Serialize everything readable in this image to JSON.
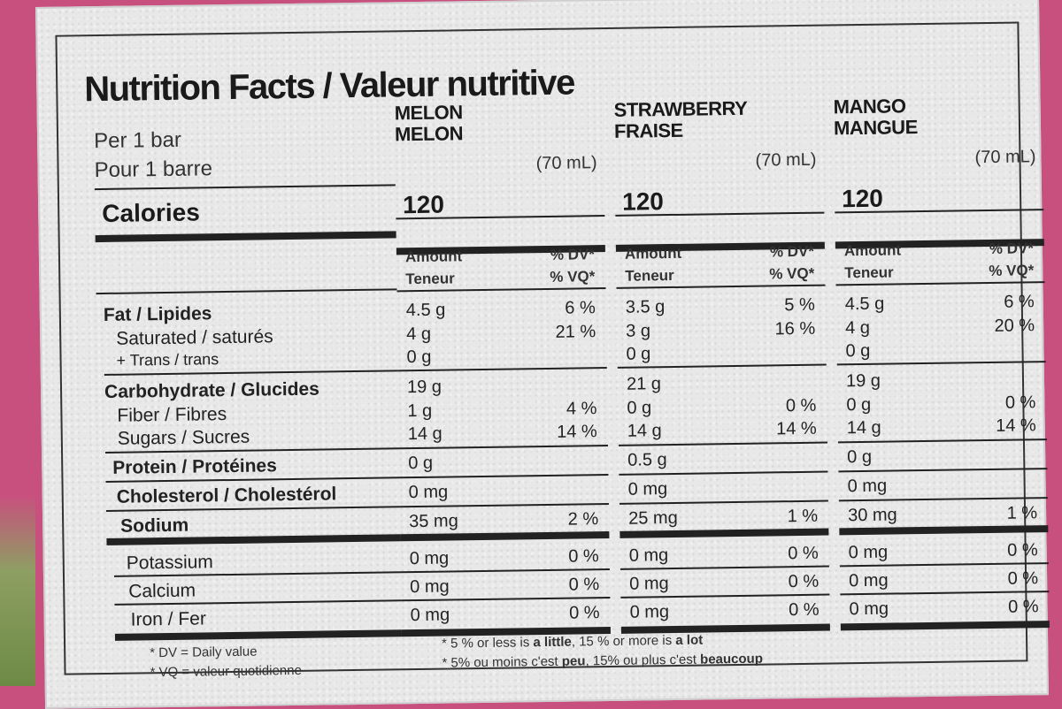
{
  "label": {
    "title": "Nutrition Facts / Valeur nutritive",
    "per_en": "Per 1 bar",
    "per_fr": "Pour 1 barre",
    "calories_label": "Calories",
    "amount_en": "Amount",
    "amount_fr": "Teneur",
    "dv_en": "% DV*",
    "dv_fr": "% VQ*",
    "nutrients": {
      "fat": "Fat / Lipides",
      "saturated": "Saturated / saturés",
      "trans": "+ Trans / trans",
      "carb": "Carbohydrate / Glucides",
      "fiber": "Fiber / Fibres",
      "sugars": "Sugars / Sucres",
      "protein": "Protein / Protéines",
      "cholesterol": "Cholesterol / Cholestérol",
      "sodium": "Sodium",
      "potassium": "Potassium",
      "calcium": "Calcium",
      "iron": "Iron / Fer"
    },
    "columns": [
      {
        "flavor_en": "MELON",
        "flavor_fr": "MELON",
        "volume": "(70 mL)",
        "calories": "120",
        "fat": "4.5 g",
        "fat_dv": "6 %",
        "saturated": "4 g",
        "trans": "0 g",
        "sat_dv": "21 %",
        "carb": "19 g",
        "fiber": "1 g",
        "fiber_dv": "4 %",
        "sugars": "14 g",
        "sugars_dv": "14 %",
        "protein": "0 g",
        "cholesterol": "0 mg",
        "sodium": "35 mg",
        "sodium_dv": "2 %",
        "potassium": "0 mg",
        "potassium_dv": "0 %",
        "calcium": "0 mg",
        "calcium_dv": "0 %",
        "iron": "0 mg",
        "iron_dv": "0 %"
      },
      {
        "flavor_en": "STRAWBERRY",
        "flavor_fr": "FRAISE",
        "volume": "(70 mL)",
        "calories": "120",
        "fat": "3.5 g",
        "fat_dv": "5 %",
        "saturated": "3 g",
        "trans": "0 g",
        "sat_dv": "16 %",
        "carb": "21 g",
        "fiber": "0 g",
        "fiber_dv": "0 %",
        "sugars": "14 g",
        "sugars_dv": "14 %",
        "protein": "0.5 g",
        "cholesterol": "0 mg",
        "sodium": "25 mg",
        "sodium_dv": "1 %",
        "potassium": "0 mg",
        "potassium_dv": "0 %",
        "calcium": "0 mg",
        "calcium_dv": "0 %",
        "iron": "0 mg",
        "iron_dv": "0 %"
      },
      {
        "flavor_en": "MANGO",
        "flavor_fr": "MANGUE",
        "volume": "(70 mL)",
        "calories": "120",
        "fat": "4.5 g",
        "fat_dv": "6 %",
        "saturated": "4 g",
        "trans": "0 g",
        "sat_dv": "20 %",
        "carb": "19 g",
        "fiber": "0 g",
        "fiber_dv": "0 %",
        "sugars": "14 g",
        "sugars_dv": "14 %",
        "protein": "0 g",
        "cholesterol": "0 mg",
        "sodium": "30 mg",
        "sodium_dv": "1 %",
        "potassium": "0 mg",
        "potassium_dv": "0 %",
        "calcium": "0 mg",
        "calcium_dv": "0 %",
        "iron": "0 mg",
        "iron_dv": "0 %"
      }
    ],
    "footnotes": {
      "dv_def": "* DV = Daily value",
      "vq_def": "* VQ = valeur quotidienne",
      "en_pre": "* 5 % or less is ",
      "en_little": "a little",
      "en_mid": ", 15 % or more is ",
      "en_lot": "a lot",
      "fr_pre": "* 5% ou moins c'est ",
      "fr_peu": "peu",
      "fr_mid": ", 15% ou plus c'est ",
      "fr_beaucoup": "beaucoup"
    }
  },
  "colors": {
    "package": "#c8507e",
    "panel": "#e8e8e8",
    "ink": "#1a1a1a"
  }
}
